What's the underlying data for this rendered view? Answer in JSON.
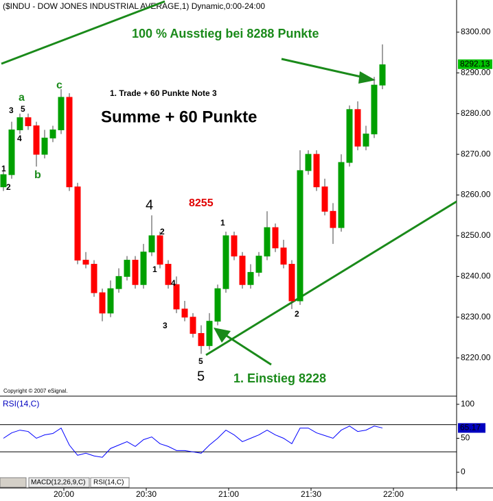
{
  "chart_data": [
    {
      "type": "candlestick",
      "title": "($INDU - DOW JONES INDUSTRIAL AVERAGE,1) Dynamic,0:00-24:00",
      "copyright": "Copyright © 2007 eSignal.",
      "x": [
        1178,
        1181,
        1184,
        1187,
        1190,
        1193,
        1196,
        1199,
        1202,
        1205,
        1208,
        1211,
        1214,
        1217,
        1220,
        1223,
        1226,
        1229,
        1232,
        1235,
        1238,
        1241,
        1244,
        1247,
        1250,
        1253,
        1256,
        1259,
        1262,
        1265,
        1268,
        1271,
        1274,
        1277,
        1280,
        1283,
        1286,
        1289,
        1292,
        1295,
        1298,
        1301,
        1304,
        1307,
        1310,
        1313,
        1316
      ],
      "open": [
        8262,
        8265,
        8276,
        8279,
        8277,
        8270,
        8274,
        8276,
        8284,
        8262,
        8244,
        8243,
        8236,
        8231,
        8237,
        8240,
        8244,
        8238,
        8246,
        8250,
        8243,
        8238,
        8232,
        8230,
        8226,
        8223,
        8229,
        8237,
        8250,
        8245,
        8238,
        8241,
        8245,
        8252,
        8247,
        8243,
        8234,
        8266,
        8270,
        8262,
        8256,
        8252,
        8268,
        8281,
        8272,
        8275,
        8287
      ],
      "high": [
        8266,
        8278,
        8280,
        8280,
        8278,
        8276,
        8277,
        8286,
        8285,
        8263,
        8246,
        8244,
        8237,
        8239,
        8242,
        8245,
        8245,
        8248,
        8255,
        8251,
        8244,
        8240,
        8234,
        8231,
        8228,
        8231,
        8238,
        8251,
        8251,
        8246,
        8243,
        8246,
        8256,
        8253,
        8249,
        8244,
        8271,
        8271,
        8271,
        8264,
        8258,
        8270,
        8282,
        8283,
        8277,
        8289,
        8297
      ],
      "low": [
        8261,
        8264,
        8275,
        8276,
        8267,
        8269,
        8273,
        8275,
        8261,
        8243,
        8242,
        8235,
        8229,
        8230,
        8236,
        8239,
        8237,
        8237,
        8245,
        8242,
        8237,
        8231,
        8229,
        8225,
        8221,
        8222,
        8228,
        8236,
        8244,
        8237,
        8237,
        8240,
        8244,
        8246,
        8242,
        8232,
        8233,
        8265,
        8261,
        8255,
        8248,
        8251,
        8267,
        8271,
        8271,
        8274,
        8286
      ],
      "close": [
        8265,
        8276,
        8279,
        8277,
        8270,
        8274,
        8276,
        8284,
        8262,
        8244,
        8243,
        8236,
        8231,
        8237,
        8240,
        8244,
        8238,
        8246,
        8250,
        8243,
        8238,
        8232,
        8230,
        8226,
        8223,
        8229,
        8237,
        8250,
        8245,
        8238,
        8241,
        8245,
        8252,
        8247,
        8243,
        8234,
        8266,
        8270,
        8262,
        8256,
        8252,
        8268,
        8281,
        8272,
        8275,
        8287,
        8292
      ],
      "up_color": "#00a000",
      "down_color": "#ff0000",
      "last_value": 8292.13,
      "xlim": [
        1176.75,
        1343
      ],
      "xticks": [
        {
          "value": 1200,
          "label": "20:00"
        },
        {
          "value": 1230,
          "label": "20:30"
        },
        {
          "value": 1260,
          "label": "21:00"
        },
        {
          "value": 1290,
          "label": "21:30"
        },
        {
          "value": 1320,
          "label": "22:00"
        }
      ],
      "ylim": [
        8210.6,
        8307.9
      ],
      "yticks": [
        {
          "value": 8220,
          "label": "8220.00"
        },
        {
          "value": 8230,
          "label": "8230.00"
        },
        {
          "value": 8240,
          "label": "8240.00"
        },
        {
          "value": 8250,
          "label": "8250.00"
        },
        {
          "value": 8260,
          "label": "8260.00"
        },
        {
          "value": 8270,
          "label": "8270.00"
        },
        {
          "value": 8280,
          "label": "8280.00"
        },
        {
          "value": 8290,
          "label": "8290.00"
        },
        {
          "value": 8300,
          "label": "8300.00"
        }
      ],
      "annotations": [
        "100 % Ausstieg bei 8288 Punkte",
        "1. Trade + 60 Punkte Note 3",
        "Summe + 60 Punkte",
        "8255",
        "4",
        "1. Einstieg 8228",
        "5",
        "1",
        "2",
        "3",
        "5",
        "4",
        "a",
        "b",
        "c",
        "2",
        "1",
        "4",
        "3",
        "5",
        "1",
        "2"
      ]
    },
    {
      "type": "line",
      "title": "RSI(14,C)",
      "tabs": [
        "MACD(12,26,9,C)",
        "RSI(14,C)"
      ],
      "x": [
        1178,
        1181,
        1184,
        1187,
        1190,
        1193,
        1196,
        1199,
        1202,
        1205,
        1208,
        1211,
        1214,
        1217,
        1220,
        1223,
        1226,
        1229,
        1232,
        1235,
        1238,
        1241,
        1244,
        1247,
        1250,
        1253,
        1256,
        1259,
        1262,
        1265,
        1268,
        1271,
        1274,
        1277,
        1280,
        1283,
        1286,
        1289,
        1292,
        1295,
        1298,
        1301,
        1304,
        1307,
        1310,
        1313,
        1316
      ],
      "series": [
        {
          "name": "RSI(14,C)",
          "color": "#0000ff",
          "values": [
            50,
            58,
            62,
            60,
            50,
            55,
            57,
            65,
            40,
            25,
            28,
            24,
            22,
            35,
            40,
            45,
            38,
            48,
            52,
            42,
            38,
            32,
            32,
            30,
            28,
            40,
            50,
            62,
            55,
            45,
            50,
            55,
            62,
            55,
            50,
            42,
            65,
            65,
            58,
            54,
            50,
            62,
            68,
            60,
            62,
            68,
            65.17
          ]
        }
      ],
      "last_value": 65.17,
      "reference_lines": [
        70,
        30
      ],
      "xlim": [
        1176.75,
        1343
      ],
      "ylim": [
        -6,
        110
      ],
      "yticks": [
        0,
        50,
        100
      ]
    }
  ]
}
